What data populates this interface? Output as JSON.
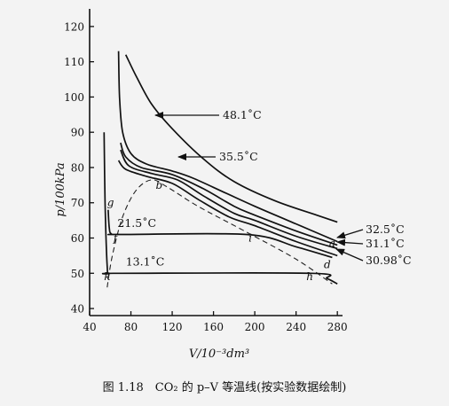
{
  "chart_data": {
    "type": "line",
    "xlabel": "V/10⁻³dm³",
    "ylabel": "p/100kPa",
    "xlim": [
      40,
      285
    ],
    "ylim": [
      38,
      125
    ],
    "x_ticks": [
      40,
      80,
      120,
      160,
      200,
      240,
      280
    ],
    "y_ticks": [
      40,
      50,
      60,
      70,
      80,
      90,
      100,
      110,
      120
    ],
    "caption": "图 1.18　CO₂ 的 p–V 等温线(按实验数据绘制)",
    "series": [
      {
        "name": "48.1˚C",
        "points": [
          [
            75,
            112
          ],
          [
            85,
            106
          ],
          [
            100,
            98
          ],
          [
            120,
            91
          ],
          [
            150,
            82.5
          ],
          [
            180,
            76
          ],
          [
            220,
            70.5
          ],
          [
            260,
            66.5
          ],
          [
            280,
            64.5
          ]
        ]
      },
      {
        "name": "35.5˚C",
        "points": [
          [
            68,
            113
          ],
          [
            69,
            100
          ],
          [
            72,
            90
          ],
          [
            80,
            84
          ],
          [
            95,
            81
          ],
          [
            120,
            79
          ],
          [
            140,
            77
          ],
          [
            170,
            73
          ],
          [
            200,
            69
          ],
          [
            240,
            64
          ],
          [
            280,
            59
          ]
        ]
      },
      {
        "name": "32.5˚C",
        "points": [
          [
            70,
            87
          ],
          [
            75,
            83
          ],
          [
            90,
            80
          ],
          [
            120,
            78
          ],
          [
            150,
            74
          ],
          [
            180,
            69
          ],
          [
            200,
            66.5
          ],
          [
            240,
            62
          ],
          [
            280,
            58
          ]
        ]
      },
      {
        "name": "31.1˚C",
        "points": [
          [
            70,
            85
          ],
          [
            78,
            80.5
          ],
          [
            100,
            78.3
          ],
          [
            125,
            76.5
          ],
          [
            150,
            72
          ],
          [
            180,
            67
          ],
          [
            200,
            65
          ],
          [
            240,
            60.5
          ],
          [
            280,
            57
          ]
        ]
      },
      {
        "name": "30.98˚C",
        "points": [
          [
            68,
            82
          ],
          [
            75,
            79.5
          ],
          [
            95,
            77.5
          ],
          [
            120,
            75.5
          ],
          [
            145,
            71
          ],
          [
            175,
            66
          ],
          [
            200,
            63.5
          ],
          [
            240,
            59
          ],
          [
            280,
            55
          ]
        ]
      },
      {
        "name": "21.5˚C",
        "points": [
          [
            58,
            68
          ],
          [
            59,
            63
          ],
          [
            61,
            61.2
          ],
          [
            70,
            61
          ],
          [
            192,
            61
          ],
          [
            240,
            57.5
          ],
          [
            275,
            54.5
          ]
        ]
      },
      {
        "name": "13.1˚C",
        "points": [
          [
            54,
            90
          ],
          [
            55,
            70
          ],
          [
            57,
            52
          ],
          [
            59,
            50
          ],
          [
            70,
            50
          ],
          [
            255,
            50
          ],
          [
            270,
            48.5
          ],
          [
            280,
            47
          ]
        ]
      }
    ],
    "coexistence_dome": [
      [
        57,
        46
      ],
      [
        62,
        55
      ],
      [
        72,
        66
      ],
      [
        85,
        73.5
      ],
      [
        100,
        76.5
      ],
      [
        115,
        74.5
      ],
      [
        145,
        69
      ],
      [
        190,
        62
      ],
      [
        240,
        54
      ],
      [
        275,
        47
      ]
    ],
    "point_labels": [
      {
        "text": "a",
        "x": 272,
        "y": 57.5
      },
      {
        "text": "b",
        "x": 104,
        "y": 74
      },
      {
        "text": "d",
        "x": 267,
        "y": 51.5
      },
      {
        "text": "f",
        "x": 63,
        "y": 59
      },
      {
        "text": "g",
        "x": 57,
        "y": 69
      },
      {
        "text": "h",
        "x": 250,
        "y": 48
      },
      {
        "text": "i",
        "x": 194,
        "y": 59
      },
      {
        "text": "k",
        "x": 54,
        "y": 48
      }
    ]
  }
}
